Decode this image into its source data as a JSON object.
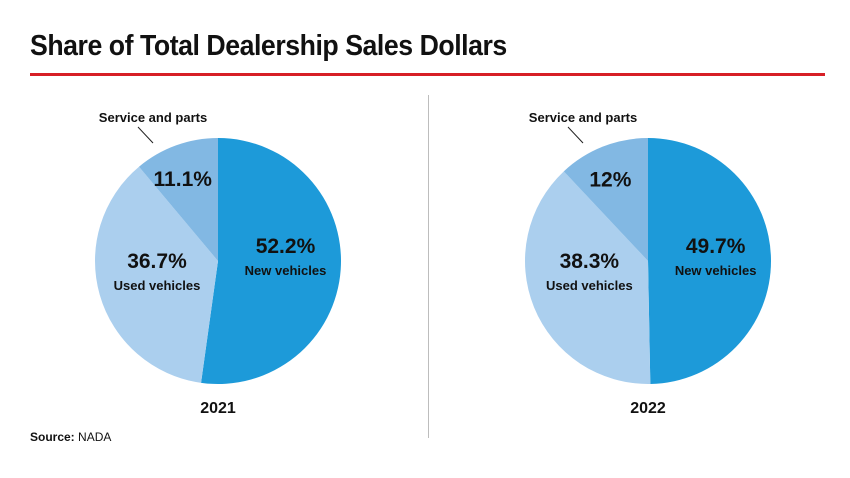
{
  "header": {
    "title": "Share of Total Dealership Sales Dollars"
  },
  "footer": {
    "source_label": "Source:",
    "source_value": "NADA"
  },
  "colors": {
    "accent_rule": "#d71f26",
    "new_vehicles": "#1d9ad9",
    "used_vehicles": "#abcfee",
    "service_parts": "#82b8e3"
  },
  "chart_data": [
    {
      "type": "pie",
      "year": "2021",
      "slices": [
        {
          "label": "New vehicles",
          "value": 52.2,
          "display": "52.2%"
        },
        {
          "label": "Used vehicles",
          "value": 36.7,
          "display": "36.7%"
        },
        {
          "label": "Service and parts",
          "value": 11.1,
          "display": "11.1%"
        }
      ]
    },
    {
      "type": "pie",
      "year": "2022",
      "slices": [
        {
          "label": "New vehicles",
          "value": 49.7,
          "display": "49.7%"
        },
        {
          "label": "Used vehicles",
          "value": 38.3,
          "display": "38.3%"
        },
        {
          "label": "Service and parts",
          "value": 12,
          "display": "12%"
        }
      ]
    }
  ]
}
